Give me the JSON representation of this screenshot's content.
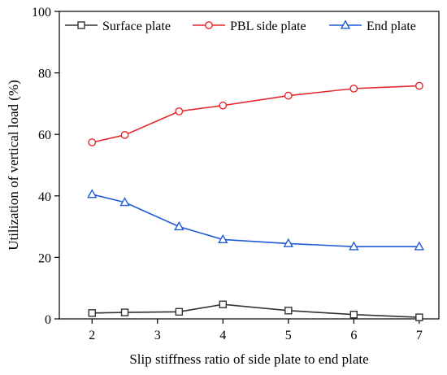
{
  "chart_data": {
    "type": "line",
    "title": "",
    "xlabel": "Slip stiffness ratio of side plate to end plate",
    "ylabel": "Utilization of vertical load (%)",
    "xlim": [
      1.5,
      7.3
    ],
    "ylim": [
      0,
      100
    ],
    "xticks": [
      2,
      3,
      4,
      5,
      6,
      7
    ],
    "yticks": [
      0,
      20,
      40,
      60,
      80,
      100
    ],
    "grid": false,
    "legend_position": "top",
    "x": [
      2,
      2.5,
      3.33,
      4,
      5,
      6,
      7
    ],
    "series": [
      {
        "name": "Surface plate",
        "marker": "square",
        "color": "#333333",
        "values": [
          1.9,
          2.1,
          2.3,
          4.7,
          2.7,
          1.4,
          0.5
        ]
      },
      {
        "name": "PBL side plate",
        "marker": "circle",
        "color": "#e8272b",
        "values": [
          57.4,
          59.8,
          67.5,
          69.4,
          72.6,
          74.9,
          75.8
        ]
      },
      {
        "name": "End plate",
        "marker": "triangle",
        "color": "#1f5bd6",
        "values": [
          40.5,
          37.9,
          30.0,
          25.8,
          24.5,
          23.5,
          23.5
        ]
      }
    ]
  }
}
